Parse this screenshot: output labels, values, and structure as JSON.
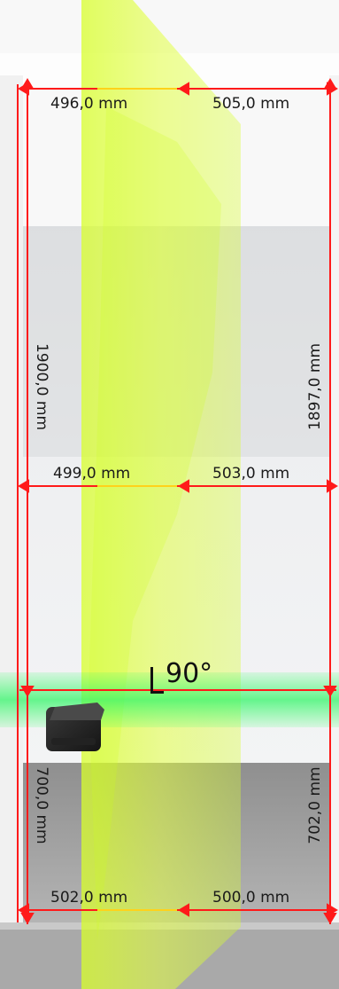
{
  "measurements": {
    "top_left": "496,0 mm",
    "top_right": "505,0 mm",
    "middle_left": "499,0 mm",
    "middle_right": "503,0 mm",
    "bottom_left": "502,0 mm",
    "bottom_right": "500,0 mm",
    "upper_left_height": "1900,0 mm",
    "upper_right_height": "1897,0 mm",
    "lower_left_height": "700,0 mm",
    "lower_right_height": "702,0 mm"
  },
  "angle_label": "90°",
  "colors": {
    "measure_line": "#ff1a1a",
    "vertical_laser": "#d6ff2e",
    "horizontal_laser": "#35f56a",
    "device": "#2b2b2b",
    "wall": "#eceeef",
    "floor": "#9c9c9c"
  },
  "icons": [
    "laser-level-device-icon",
    "right-angle-icon"
  ]
}
